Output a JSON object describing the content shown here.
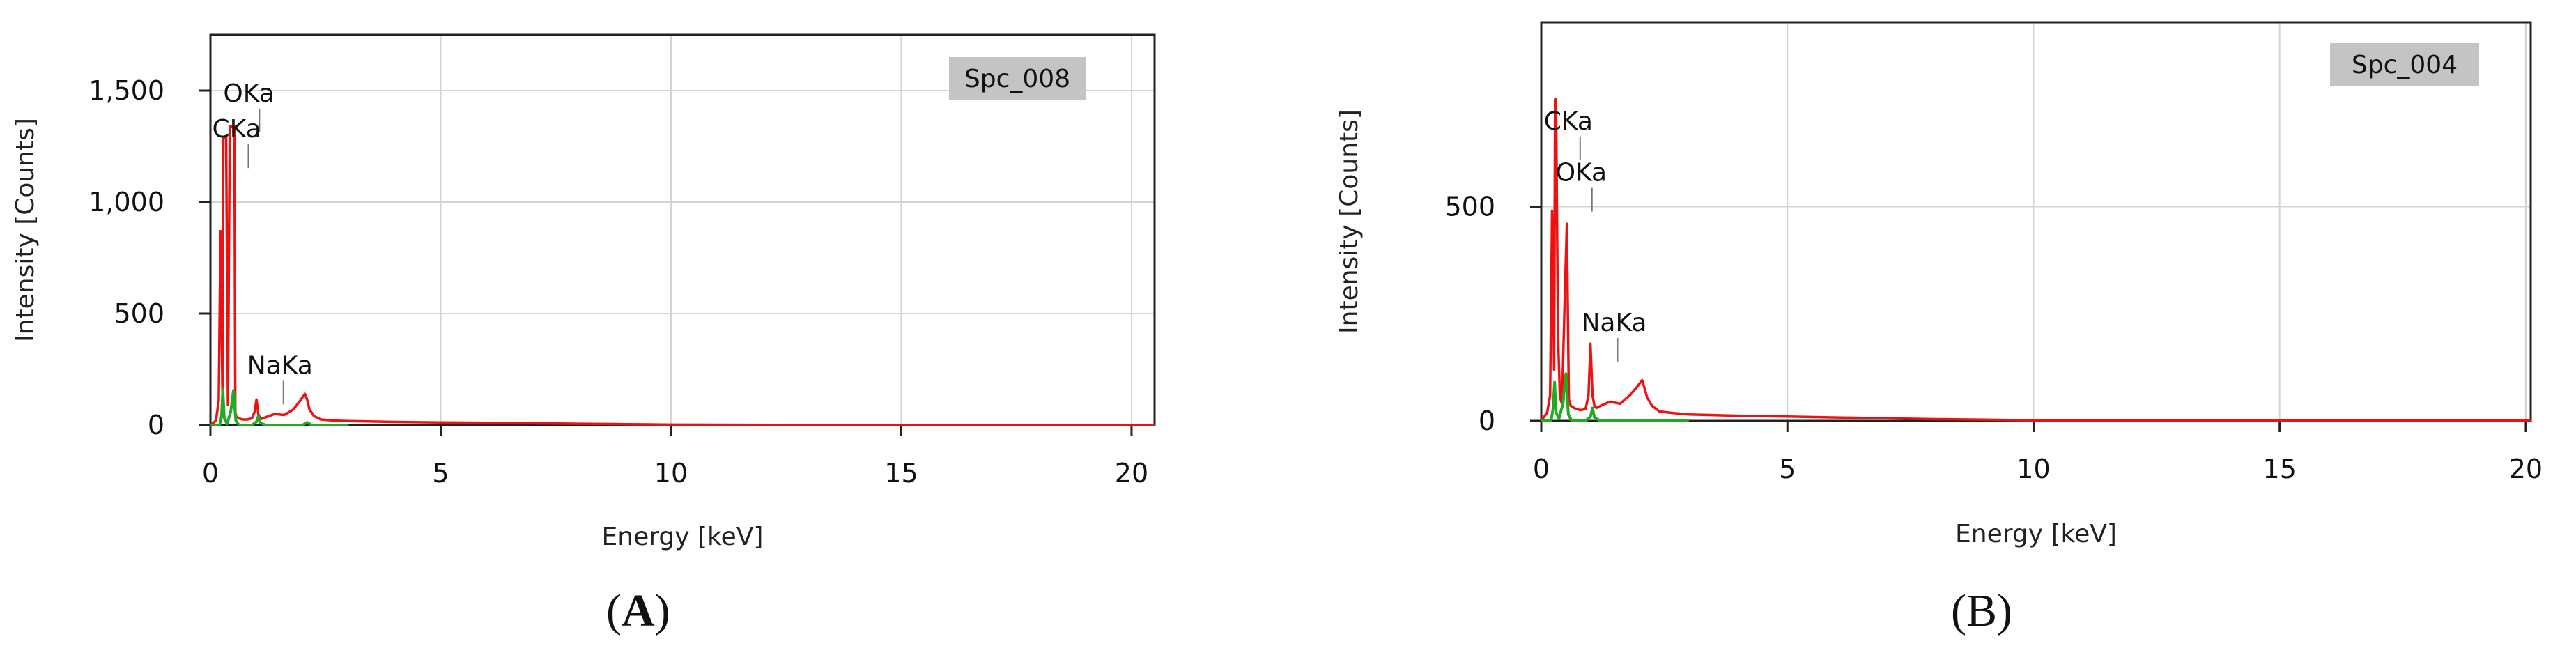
{
  "chart_data": [
    {
      "type": "line",
      "panel": "(A)",
      "caption": {
        "open": "(",
        "letter": "A",
        "close": ")"
      },
      "badge": "Spc_008",
      "xlabel": "Energy [keV]",
      "ylabel": "Intensity [Counts]",
      "xlim": [
        0,
        20.5
      ],
      "ylim": [
        0,
        1750
      ],
      "xticks": [
        0,
        5,
        10,
        15,
        20
      ],
      "yticks": [
        0,
        500,
        1000,
        1500
      ],
      "ytick_labels": [
        "0",
        "500",
        "1,000",
        "1,500"
      ],
      "grid": true,
      "peak_labels": [
        {
          "text": "OKa",
          "x": 0.52,
          "y": 1450
        },
        {
          "text": "CKa",
          "x": 0.28,
          "y": 1290
        },
        {
          "text": "NaKa",
          "x": 1.04,
          "y": 230
        }
      ],
      "series": [
        {
          "color": "#ee1111",
          "x": [
            0,
            0.12,
            0.18,
            0.22,
            0.26,
            0.28,
            0.3,
            0.34,
            0.38,
            0.42,
            0.46,
            0.5,
            0.52,
            0.54,
            0.56,
            0.58,
            0.62,
            0.7,
            0.8,
            0.9,
            0.96,
            1.0,
            1.04,
            1.08,
            1.12,
            1.2,
            1.4,
            1.6,
            1.8,
            1.95,
            2.05,
            2.1,
            2.15,
            2.25,
            2.4,
            2.7,
            3.0,
            4.0,
            5.0,
            6.0,
            7.0,
            8.0,
            9.0,
            9.5,
            10.0,
            12.0,
            14.0,
            16.0,
            18.0,
            20.5
          ],
          "y": [
            0,
            20,
            110,
            870,
            150,
            1290,
            1290,
            1290,
            90,
            1340,
            1340,
            1340,
            1340,
            60,
            40,
            35,
            30,
            25,
            25,
            30,
            60,
            115,
            50,
            30,
            28,
            35,
            50,
            45,
            70,
            110,
            140,
            115,
            70,
            40,
            25,
            20,
            18,
            14,
            12,
            10,
            8,
            6,
            4,
            3,
            2,
            1,
            1,
            1,
            1,
            1
          ]
        },
        {
          "color": "#22aa22",
          "x": [
            0,
            0.2,
            0.24,
            0.27,
            0.3,
            0.36,
            0.44,
            0.5,
            0.55,
            0.62,
            0.9,
            1.0,
            1.04,
            1.08,
            1.2,
            2.0,
            2.1,
            2.2,
            3.0
          ],
          "y": [
            0,
            0,
            40,
            160,
            30,
            5,
            60,
            155,
            20,
            0,
            0,
            15,
            40,
            10,
            0,
            0,
            12,
            0,
            0
          ]
        }
      ]
    },
    {
      "type": "line",
      "panel": "(B)",
      "caption": {
        "open": "(",
        "letter": "B",
        "close": ")"
      },
      "badge": "Spc_004",
      "xlabel": "Energy [keV]",
      "ylabel": "Intensity [Counts]",
      "xlim": [
        0,
        20.1
      ],
      "ylim": [
        0,
        930
      ],
      "xticks": [
        0,
        5,
        10,
        15,
        20
      ],
      "yticks": [
        0,
        500
      ],
      "ytick_labels": [
        "0",
        "500"
      ],
      "grid": true,
      "peak_labels": [
        {
          "text": "CKa",
          "x": 0.28,
          "y": 680
        },
        {
          "text": "OKa",
          "x": 0.52,
          "y": 560
        },
        {
          "text": "NaKa",
          "x": 1.04,
          "y": 210
        }
      ],
      "series": [
        {
          "color": "#ee1111",
          "x": [
            0,
            0.12,
            0.18,
            0.22,
            0.26,
            0.28,
            0.3,
            0.34,
            0.38,
            0.42,
            0.48,
            0.52,
            0.56,
            0.6,
            0.7,
            0.8,
            0.9,
            0.96,
            1.0,
            1.04,
            1.08,
            1.12,
            1.2,
            1.4,
            1.6,
            1.8,
            1.95,
            2.05,
            2.1,
            2.15,
            2.25,
            2.4,
            2.7,
            3.0,
            4.0,
            5.0,
            6.0,
            7.0,
            8.0,
            9.0,
            9.5,
            10.0,
            12.0,
            14.0,
            16.0,
            18.0,
            20.1
          ],
          "y": [
            0,
            20,
            60,
            490,
            120,
            750,
            750,
            200,
            55,
            40,
            300,
            460,
            50,
            35,
            28,
            25,
            28,
            60,
            180,
            60,
            35,
            30,
            35,
            45,
            40,
            60,
            80,
            95,
            75,
            55,
            35,
            22,
            18,
            15,
            12,
            10,
            8,
            6,
            4,
            3,
            2,
            1,
            1,
            1,
            1,
            1,
            1
          ]
        },
        {
          "color": "#22aa22",
          "x": [
            0,
            0.2,
            0.24,
            0.27,
            0.3,
            0.36,
            0.44,
            0.5,
            0.55,
            0.62,
            0.9,
            1.0,
            1.04,
            1.08,
            1.2,
            3.0
          ],
          "y": [
            0,
            0,
            30,
            90,
            20,
            5,
            40,
            110,
            15,
            0,
            0,
            10,
            30,
            8,
            0,
            0
          ]
        }
      ]
    }
  ]
}
